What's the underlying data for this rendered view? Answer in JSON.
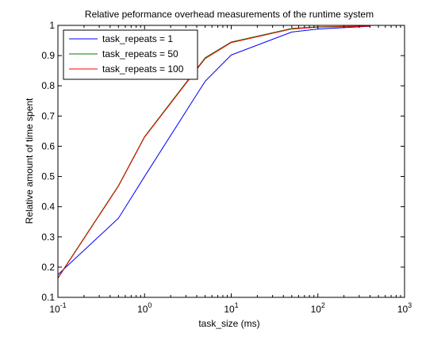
{
  "chart_data": {
    "type": "line",
    "title": "Relative peformance overhead measurements of the runtime system",
    "xlabel": "task_size (ms)",
    "ylabel": "Relative amount of time spent",
    "xscale": "log",
    "xlim": [
      0.1,
      1000
    ],
    "ylim": [
      0.1,
      1
    ],
    "grid": false,
    "legend_position": "top-left",
    "x_ticks": [
      {
        "value": 0.1,
        "base": "10",
        "exp": "-1"
      },
      {
        "value": 1,
        "base": "10",
        "exp": "0"
      },
      {
        "value": 10,
        "base": "10",
        "exp": "1"
      },
      {
        "value": 100,
        "base": "10",
        "exp": "2"
      },
      {
        "value": 1000,
        "base": "10",
        "exp": "3"
      }
    ],
    "y_ticks": [
      {
        "value": 0.1,
        "label": "0.1"
      },
      {
        "value": 0.2,
        "label": "0.2"
      },
      {
        "value": 0.3,
        "label": "0.3"
      },
      {
        "value": 0.4,
        "label": "0.4"
      },
      {
        "value": 0.5,
        "label": "0.5"
      },
      {
        "value": 0.6,
        "label": "0.6"
      },
      {
        "value": 0.7,
        "label": "0.7"
      },
      {
        "value": 0.8,
        "label": "0.8"
      },
      {
        "value": 0.9,
        "label": "0.9"
      },
      {
        "value": 1,
        "label": "1"
      }
    ],
    "series": [
      {
        "name": "task_repeats = 1",
        "color": "#0000ff",
        "x": [
          0.1,
          0.5,
          1,
          5,
          10,
          50,
          100,
          400
        ],
        "y": [
          0.175,
          0.362,
          0.5,
          0.815,
          0.902,
          0.978,
          0.988,
          0.997
        ]
      },
      {
        "name": "task_repeats = 50",
        "color": "#008000",
        "x": [
          0.1,
          0.5,
          1,
          5,
          10,
          50,
          100,
          400
        ],
        "y": [
          0.165,
          0.47,
          0.632,
          0.893,
          0.945,
          0.99,
          0.995,
          0.998
        ]
      },
      {
        "name": "task_repeats = 100",
        "color": "#ff0000",
        "x": [
          0.1,
          0.5,
          1,
          5,
          10,
          50,
          100,
          400
        ],
        "y": [
          0.163,
          0.468,
          0.63,
          0.89,
          0.943,
          0.988,
          0.994,
          0.997
        ]
      }
    ]
  }
}
